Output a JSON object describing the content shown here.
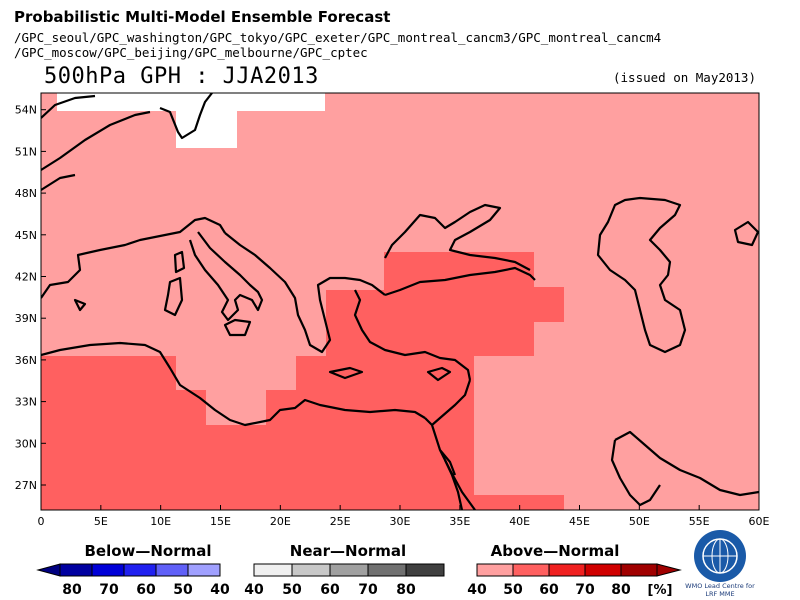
{
  "header": {
    "title_main": "Probabilistic Multi-Model Ensemble Forecast",
    "models_line1": "/GPC_seoul/GPC_washington/GPC_tokyo/GPC_exeter/GPC_montreal_cancm3/GPC_montreal_cancm4",
    "models_line2": "/GPC_moscow/GPC_beijing/GPC_melbourne/GPC_cptec"
  },
  "map_title": "500hPa GPH : JJA2013",
  "issued": "(issued on May2013)",
  "axes": {
    "lat_labels": [
      "54N",
      "51N",
      "48N",
      "45N",
      "42N",
      "39N",
      "36N",
      "33N",
      "30N",
      "27N"
    ],
    "lon_labels": [
      "0",
      "5E",
      "10E",
      "15E",
      "20E",
      "25E",
      "30E",
      "35E",
      "40E",
      "45E",
      "50E",
      "55E",
      "60E"
    ]
  },
  "legend": {
    "below": {
      "label": "Below—Normal",
      "ticks": [
        "80",
        "70",
        "60",
        "50",
        "40"
      ],
      "colors": [
        "#0000a0",
        "#0000d8",
        "#2020f0",
        "#6060f8",
        "#a0a0ff"
      ]
    },
    "near": {
      "label": "Near—Normal",
      "ticks": [
        "40",
        "50",
        "60",
        "70",
        "80"
      ],
      "colors": [
        "#f0f0f0",
        "#c8c8c8",
        "#a0a0a0",
        "#707070",
        "#404040"
      ]
    },
    "above": {
      "label": "Above—Normal",
      "ticks": [
        "40",
        "50",
        "60",
        "70",
        "80"
      ],
      "colors": [
        "#ffa0a0",
        "#ff6060",
        "#f02020",
        "#d00000",
        "#a00000"
      ],
      "unit": "[%]"
    }
  },
  "logo": {
    "text_line1": "WMO Lead Centre for",
    "text_line2": "LRF MME"
  },
  "colors": {
    "above_40": "#ffa0a0",
    "above_50": "#ff6060",
    "no_signal": "#ffffff"
  }
}
